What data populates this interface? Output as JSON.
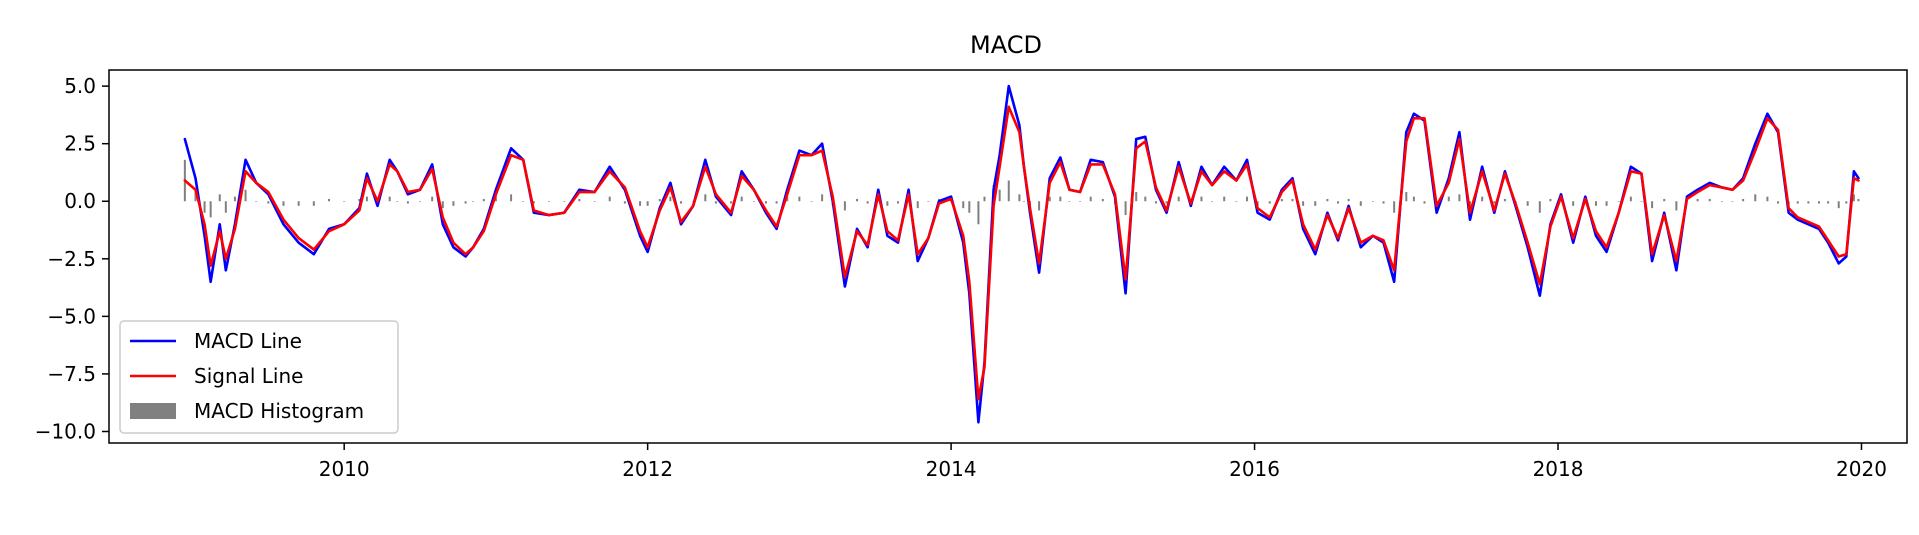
{
  "chart_data": {
    "type": "line",
    "title": "MACD",
    "xlabel": "",
    "ylabel": "",
    "xlim": [
      2008.45,
      2020.3
    ],
    "ylim": [
      -10.5,
      5.7
    ],
    "x_ticks": [
      2010,
      2012,
      2014,
      2016,
      2018,
      2020
    ],
    "x_tick_labels": [
      "2010",
      "2012",
      "2014",
      "2016",
      "2018",
      "2020"
    ],
    "y_ticks": [
      5.0,
      2.5,
      0.0,
      -2.5,
      -5.0,
      -7.5,
      -10.0
    ],
    "y_tick_labels": [
      "5.0",
      "2.5",
      "0.0",
      "−2.5",
      "−5.0",
      "−7.5",
      "−10.0"
    ],
    "grid": false,
    "legend_position": "lower-left",
    "colors": {
      "macd": "#0000ff",
      "signal": "#ff0000",
      "histogram": "#808080"
    },
    "series": [
      {
        "name": "MACD Line",
        "x": [
          2008.95,
          2009.02,
          2009.08,
          2009.12,
          2009.18,
          2009.22,
          2009.28,
          2009.35,
          2009.42,
          2009.5,
          2009.6,
          2009.7,
          2009.8,
          2009.9,
          2010.0,
          2010.1,
          2010.15,
          2010.22,
          2010.3,
          2010.35,
          2010.42,
          2010.5,
          2010.58,
          2010.65,
          2010.72,
          2010.8,
          2010.85,
          2010.92,
          2011.0,
          2011.1,
          2011.18,
          2011.25,
          2011.35,
          2011.45,
          2011.55,
          2011.65,
          2011.75,
          2011.85,
          2011.95,
          2012.0,
          2012.08,
          2012.15,
          2012.22,
          2012.3,
          2012.38,
          2012.45,
          2012.55,
          2012.62,
          2012.7,
          2012.78,
          2012.85,
          2012.92,
          2013.0,
          2013.08,
          2013.15,
          2013.22,
          2013.3,
          2013.38,
          2013.45,
          2013.52,
          2013.58,
          2013.65,
          2013.72,
          2013.78,
          2013.85,
          2013.92,
          2014.0,
          2014.08,
          2014.12,
          2014.18,
          2014.22,
          2014.28,
          2014.32,
          2014.38,
          2014.45,
          2014.48,
          2014.52,
          2014.58,
          2014.65,
          2014.72,
          2014.78,
          2014.85,
          2014.92,
          2015.0,
          2015.08,
          2015.15,
          2015.22,
          2015.28,
          2015.35,
          2015.42,
          2015.5,
          2015.58,
          2015.65,
          2015.72,
          2015.8,
          2015.88,
          2015.95,
          2016.02,
          2016.1,
          2016.18,
          2016.25,
          2016.32,
          2016.4,
          2016.48,
          2016.55,
          2016.62,
          2016.7,
          2016.78,
          2016.85,
          2016.92,
          2017.0,
          2017.05,
          2017.12,
          2017.2,
          2017.28,
          2017.35,
          2017.42,
          2017.5,
          2017.58,
          2017.65,
          2017.72,
          2017.8,
          2017.88,
          2017.95,
          2018.02,
          2018.1,
          2018.18,
          2018.25,
          2018.32,
          2018.4,
          2018.48,
          2018.55,
          2018.62,
          2018.7,
          2018.78,
          2018.85,
          2018.92,
          2019.0,
          2019.08,
          2019.15,
          2019.22,
          2019.3,
          2019.38,
          2019.45,
          2019.52,
          2019.58,
          2019.65,
          2019.72,
          2019.78,
          2019.85,
          2019.9,
          2019.95,
          2019.98
        ],
        "values": [
          2.7,
          1.0,
          -1.5,
          -3.5,
          -1.0,
          -3.0,
          -1.0,
          1.8,
          0.8,
          0.3,
          -1.0,
          -1.8,
          -2.3,
          -1.2,
          -1.0,
          -0.3,
          1.2,
          -0.2,
          1.8,
          1.3,
          0.3,
          0.5,
          1.6,
          -1.0,
          -2.0,
          -2.4,
          -2.0,
          -1.2,
          0.5,
          2.3,
          1.8,
          -0.5,
          -0.6,
          -0.5,
          0.5,
          0.4,
          1.5,
          0.5,
          -1.5,
          -2.2,
          -0.3,
          0.8,
          -1.0,
          -0.2,
          1.8,
          0.2,
          -0.6,
          1.3,
          0.5,
          -0.5,
          -1.2,
          0.5,
          2.2,
          2.0,
          2.5,
          0.0,
          -3.7,
          -1.2,
          -2.0,
          0.5,
          -1.5,
          -1.8,
          0.5,
          -2.6,
          -1.6,
          0.0,
          0.2,
          -1.8,
          -4.0,
          -9.6,
          -7.0,
          0.5,
          2.0,
          5.0,
          3.3,
          1.5,
          -0.5,
          -3.1,
          1.0,
          1.9,
          0.5,
          0.4,
          1.8,
          1.7,
          0.2,
          -4.0,
          2.7,
          2.8,
          0.5,
          -0.5,
          1.7,
          -0.2,
          1.5,
          0.7,
          1.5,
          0.9,
          1.8,
          -0.5,
          -0.8,
          0.5,
          1.0,
          -1.2,
          -2.3,
          -0.5,
          -1.7,
          -0.2,
          -2.0,
          -1.5,
          -1.8,
          -3.5,
          3.0,
          3.8,
          3.5,
          -0.5,
          1.0,
          3.0,
          -0.8,
          1.5,
          -0.5,
          1.3,
          -0.2,
          -2.0,
          -4.1,
          -1.0,
          0.3,
          -1.8,
          0.2,
          -1.5,
          -2.2,
          -0.5,
          1.5,
          1.2,
          -2.6,
          -0.5,
          -3.0,
          0.2,
          0.5,
          0.8,
          0.6,
          0.5,
          1.0,
          2.5,
          3.8,
          3.0,
          -0.5,
          -0.8,
          -1.0,
          -1.2,
          -1.8,
          -2.7,
          -2.4,
          1.3,
          1.0
        ]
      },
      {
        "name": "Signal Line",
        "x": [
          2008.95,
          2009.02,
          2009.08,
          2009.12,
          2009.18,
          2009.22,
          2009.28,
          2009.35,
          2009.42,
          2009.5,
          2009.6,
          2009.7,
          2009.8,
          2009.9,
          2010.0,
          2010.1,
          2010.15,
          2010.22,
          2010.3,
          2010.35,
          2010.42,
          2010.5,
          2010.58,
          2010.65,
          2010.72,
          2010.8,
          2010.85,
          2010.92,
          2011.0,
          2011.1,
          2011.18,
          2011.25,
          2011.35,
          2011.45,
          2011.55,
          2011.65,
          2011.75,
          2011.85,
          2011.95,
          2012.0,
          2012.08,
          2012.15,
          2012.22,
          2012.3,
          2012.38,
          2012.45,
          2012.55,
          2012.62,
          2012.7,
          2012.78,
          2012.85,
          2012.92,
          2013.0,
          2013.08,
          2013.15,
          2013.22,
          2013.3,
          2013.38,
          2013.45,
          2013.52,
          2013.58,
          2013.65,
          2013.72,
          2013.78,
          2013.85,
          2013.92,
          2014.0,
          2014.08,
          2014.12,
          2014.18,
          2014.22,
          2014.28,
          2014.32,
          2014.38,
          2014.45,
          2014.48,
          2014.52,
          2014.58,
          2014.65,
          2014.72,
          2014.78,
          2014.85,
          2014.92,
          2015.0,
          2015.08,
          2015.15,
          2015.22,
          2015.28,
          2015.35,
          2015.42,
          2015.5,
          2015.58,
          2015.65,
          2015.72,
          2015.8,
          2015.88,
          2015.95,
          2016.02,
          2016.1,
          2016.18,
          2016.25,
          2016.32,
          2016.4,
          2016.48,
          2016.55,
          2016.62,
          2016.7,
          2016.78,
          2016.85,
          2016.92,
          2017.0,
          2017.05,
          2017.12,
          2017.2,
          2017.28,
          2017.35,
          2017.42,
          2017.5,
          2017.58,
          2017.65,
          2017.72,
          2017.8,
          2017.88,
          2017.95,
          2018.02,
          2018.1,
          2018.18,
          2018.25,
          2018.32,
          2018.4,
          2018.48,
          2018.55,
          2018.62,
          2018.7,
          2018.78,
          2018.85,
          2018.92,
          2019.0,
          2019.08,
          2019.15,
          2019.22,
          2019.3,
          2019.38,
          2019.45,
          2019.52,
          2019.58,
          2019.65,
          2019.72,
          2019.78,
          2019.85,
          2019.9,
          2019.95,
          2019.98
        ],
        "values": [
          0.9,
          0.5,
          -1.0,
          -2.8,
          -1.3,
          -2.5,
          -1.2,
          1.3,
          0.8,
          0.4,
          -0.8,
          -1.6,
          -2.1,
          -1.3,
          -1.0,
          -0.4,
          1.0,
          0.0,
          1.6,
          1.3,
          0.4,
          0.5,
          1.4,
          -0.7,
          -1.8,
          -2.3,
          -2.0,
          -1.3,
          0.3,
          2.0,
          1.8,
          -0.4,
          -0.6,
          -0.5,
          0.4,
          0.4,
          1.3,
          0.6,
          -1.3,
          -2.0,
          -0.4,
          0.6,
          -0.9,
          -0.2,
          1.5,
          0.3,
          -0.5,
          1.1,
          0.5,
          -0.4,
          -1.1,
          0.3,
          2.0,
          2.0,
          2.2,
          0.2,
          -3.3,
          -1.3,
          -1.9,
          0.3,
          -1.3,
          -1.7,
          0.3,
          -2.3,
          -1.6,
          -0.1,
          0.1,
          -1.5,
          -3.5,
          -8.6,
          -7.2,
          -0.2,
          1.5,
          4.1,
          3.0,
          1.5,
          -0.3,
          -2.7,
          0.8,
          1.7,
          0.5,
          0.4,
          1.6,
          1.6,
          0.3,
          -3.4,
          2.3,
          2.6,
          0.6,
          -0.4,
          1.5,
          -0.1,
          1.3,
          0.7,
          1.3,
          0.9,
          1.6,
          -0.3,
          -0.7,
          0.4,
          0.9,
          -1.0,
          -2.1,
          -0.6,
          -1.6,
          -0.3,
          -1.8,
          -1.5,
          -1.7,
          -3.0,
          2.6,
          3.6,
          3.6,
          -0.2,
          0.8,
          2.7,
          -0.5,
          1.3,
          -0.4,
          1.2,
          -0.1,
          -1.8,
          -3.6,
          -1.1,
          0.2,
          -1.6,
          0.1,
          -1.3,
          -2.0,
          -0.5,
          1.3,
          1.2,
          -2.3,
          -0.6,
          -2.6,
          0.1,
          0.4,
          0.7,
          0.6,
          0.5,
          0.9,
          2.2,
          3.6,
          3.1,
          -0.3,
          -0.7,
          -0.9,
          -1.1,
          -1.7,
          -2.4,
          -2.3,
          1.0,
          0.9
        ]
      }
    ],
    "histogram": {
      "name": "MACD Histogram",
      "x": [
        2008.95,
        2009.02,
        2009.08,
        2009.12,
        2009.18,
        2009.22,
        2009.28,
        2009.35,
        2009.42,
        2009.5,
        2009.6,
        2009.7,
        2009.8,
        2009.9,
        2010.0,
        2010.1,
        2010.15,
        2010.22,
        2010.3,
        2010.35,
        2010.42,
        2010.5,
        2010.58,
        2010.65,
        2010.72,
        2010.8,
        2010.85,
        2010.92,
        2011.0,
        2011.1,
        2011.18,
        2011.25,
        2011.35,
        2011.45,
        2011.55,
        2011.65,
        2011.75,
        2011.85,
        2011.95,
        2012.0,
        2012.08,
        2012.15,
        2012.22,
        2012.3,
        2012.38,
        2012.45,
        2012.55,
        2012.62,
        2012.7,
        2012.78,
        2012.85,
        2012.92,
        2013.0,
        2013.08,
        2013.15,
        2013.22,
        2013.3,
        2013.38,
        2013.45,
        2013.52,
        2013.58,
        2013.65,
        2013.72,
        2013.78,
        2013.85,
        2013.92,
        2014.0,
        2014.08,
        2014.12,
        2014.18,
        2014.22,
        2014.28,
        2014.32,
        2014.38,
        2014.45,
        2014.48,
        2014.52,
        2014.58,
        2014.65,
        2014.72,
        2014.78,
        2014.85,
        2014.92,
        2015.0,
        2015.08,
        2015.15,
        2015.22,
        2015.28,
        2015.35,
        2015.42,
        2015.5,
        2015.58,
        2015.65,
        2015.72,
        2015.8,
        2015.88,
        2015.95,
        2016.02,
        2016.1,
        2016.18,
        2016.25,
        2016.32,
        2016.4,
        2016.48,
        2016.55,
        2016.62,
        2016.7,
        2016.78,
        2016.85,
        2016.92,
        2017.0,
        2017.05,
        2017.12,
        2017.2,
        2017.28,
        2017.35,
        2017.42,
        2017.5,
        2017.58,
        2017.65,
        2017.72,
        2017.8,
        2017.88,
        2017.95,
        2018.02,
        2018.1,
        2018.18,
        2018.25,
        2018.32,
        2018.4,
        2018.48,
        2018.55,
        2018.62,
        2018.7,
        2018.78,
        2018.85,
        2018.92,
        2019.0,
        2019.08,
        2019.15,
        2019.22,
        2019.3,
        2019.38,
        2019.45,
        2019.52,
        2019.58,
        2019.65,
        2019.72,
        2019.78,
        2019.85,
        2019.9,
        2019.95,
        2019.98
      ],
      "values": [
        1.8,
        0.5,
        -0.5,
        -0.7,
        0.3,
        -0.5,
        0.2,
        0.5,
        0.0,
        -0.1,
        -0.2,
        -0.2,
        -0.2,
        0.1,
        0.0,
        0.1,
        0.2,
        -0.2,
        0.2,
        0.0,
        -0.1,
        0.0,
        0.2,
        -0.3,
        -0.2,
        -0.1,
        0.0,
        0.1,
        0.2,
        0.3,
        0.0,
        -0.1,
        0.0,
        0.0,
        0.1,
        0.0,
        0.2,
        -0.1,
        -0.2,
        -0.2,
        0.1,
        0.2,
        -0.1,
        0.0,
        0.3,
        -0.1,
        -0.1,
        0.2,
        0.0,
        -0.1,
        -0.1,
        0.2,
        0.2,
        0.0,
        0.3,
        -0.2,
        -0.4,
        0.1,
        -0.1,
        0.2,
        -0.2,
        -0.1,
        0.2,
        -0.3,
        0.0,
        0.1,
        0.1,
        -0.3,
        -0.5,
        -1.0,
        0.2,
        0.7,
        0.5,
        0.9,
        0.3,
        0.0,
        -0.2,
        -0.4,
        0.2,
        0.2,
        0.0,
        0.0,
        0.2,
        0.1,
        -0.1,
        -0.6,
        0.4,
        0.2,
        -0.1,
        -0.1,
        0.2,
        -0.1,
        0.2,
        0.0,
        0.2,
        0.0,
        0.2,
        -0.2,
        -0.1,
        0.1,
        0.1,
        -0.2,
        -0.2,
        0.1,
        -0.1,
        0.1,
        -0.2,
        0.0,
        -0.1,
        -0.5,
        0.4,
        0.2,
        -0.1,
        -0.3,
        0.2,
        0.3,
        -0.3,
        0.2,
        -0.1,
        0.1,
        -0.1,
        -0.2,
        -0.5,
        0.1,
        0.1,
        -0.2,
        0.1,
        -0.2,
        -0.2,
        0.0,
        0.2,
        0.0,
        -0.3,
        0.1,
        -0.4,
        0.1,
        0.1,
        0.1,
        0.0,
        0.0,
        0.1,
        0.3,
        0.2,
        -0.1,
        -0.2,
        -0.1,
        -0.1,
        -0.1,
        -0.1,
        -0.3,
        -0.1,
        0.3,
        0.1
      ]
    }
  }
}
